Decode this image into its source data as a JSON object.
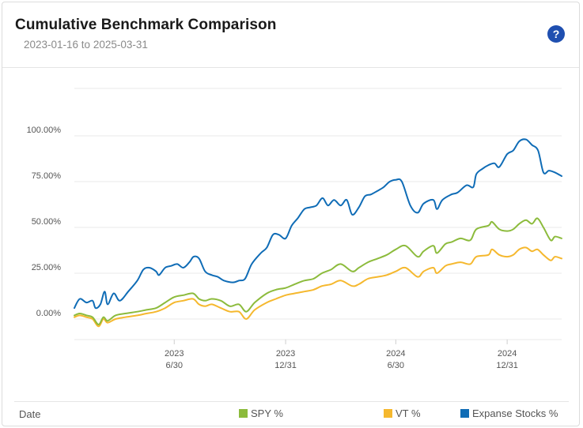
{
  "header": {
    "title": "Cumulative Benchmark Comparison",
    "date_range": "2023-01-16 to 2025-03-31",
    "help_glyph": "?"
  },
  "legend": {
    "x_field_label": "Date",
    "items": [
      {
        "label": "SPY %",
        "color": "#8cbb3c"
      },
      {
        "label": "VT %",
        "color": "#f5b82e"
      },
      {
        "label": "Expanse Stocks %",
        "color": "#0f6cb6"
      }
    ]
  },
  "chart_data": {
    "type": "line",
    "title": "Cumulative Benchmark Comparison",
    "subtitle": "2023-01-16 to 2025-03-31",
    "xlabel": "Date",
    "ylabel": "",
    "x_range": [
      "2023-01-16",
      "2025-03-31"
    ],
    "ylim": [
      -5,
      105
    ],
    "y_ticks": [
      0,
      25,
      50,
      75,
      100
    ],
    "y_tick_labels": [
      "0.00%",
      "25.00%",
      "50.00%",
      "75.00%",
      "100.00%"
    ],
    "x_ticks": [
      {
        "date": "2023-06-30",
        "year": "2023",
        "day": "6/30"
      },
      {
        "date": "2023-12-31",
        "year": "2023",
        "day": "12/31"
      },
      {
        "date": "2024-06-30",
        "year": "2024",
        "day": "6/30"
      },
      {
        "date": "2024-12-31",
        "year": "2024",
        "day": "12/31"
      }
    ],
    "grid": true,
    "legend_position": "bottom",
    "series": [
      {
        "name": "Expanse Stocks %",
        "color": "#0f6cb6",
        "points": [
          [
            "2023-01-16",
            6
          ],
          [
            "2023-01-25",
            11
          ],
          [
            "2023-02-05",
            9
          ],
          [
            "2023-02-15",
            10
          ],
          [
            "2023-02-20",
            6
          ],
          [
            "2023-02-28",
            8
          ],
          [
            "2023-03-07",
            15
          ],
          [
            "2023-03-12",
            8
          ],
          [
            "2023-03-22",
            14
          ],
          [
            "2023-04-01",
            10
          ],
          [
            "2023-04-15",
            15
          ],
          [
            "2023-04-30",
            21
          ],
          [
            "2023-05-10",
            27
          ],
          [
            "2023-05-20",
            28
          ],
          [
            "2023-05-31",
            26
          ],
          [
            "2023-06-05",
            24
          ],
          [
            "2023-06-15",
            28
          ],
          [
            "2023-06-25",
            29
          ],
          [
            "2023-07-05",
            30
          ],
          [
            "2023-07-15",
            28
          ],
          [
            "2023-07-25",
            31
          ],
          [
            "2023-08-01",
            34
          ],
          [
            "2023-08-10",
            33
          ],
          [
            "2023-08-20",
            26
          ],
          [
            "2023-08-31",
            24
          ],
          [
            "2023-09-10",
            23
          ],
          [
            "2023-09-20",
            21
          ],
          [
            "2023-10-05",
            20
          ],
          [
            "2023-10-15",
            21
          ],
          [
            "2023-10-25",
            22
          ],
          [
            "2023-11-05",
            30
          ],
          [
            "2023-11-20",
            36
          ],
          [
            "2023-11-30",
            39
          ],
          [
            "2023-12-10",
            46
          ],
          [
            "2023-12-20",
            46
          ],
          [
            "2023-12-31",
            44
          ],
          [
            "2024-01-10",
            51
          ],
          [
            "2024-01-20",
            55
          ],
          [
            "2024-01-31",
            60
          ],
          [
            "2024-02-10",
            61
          ],
          [
            "2024-02-20",
            62
          ],
          [
            "2024-03-01",
            66
          ],
          [
            "2024-03-10",
            62
          ],
          [
            "2024-03-20",
            65
          ],
          [
            "2024-03-31",
            62
          ],
          [
            "2024-04-10",
            65
          ],
          [
            "2024-04-19",
            57
          ],
          [
            "2024-04-30",
            61
          ],
          [
            "2024-05-10",
            67
          ],
          [
            "2024-05-20",
            68
          ],
          [
            "2024-05-31",
            70
          ],
          [
            "2024-06-10",
            72
          ],
          [
            "2024-06-20",
            75
          ],
          [
            "2024-06-30",
            76
          ],
          [
            "2024-07-10",
            75
          ],
          [
            "2024-07-24",
            62
          ],
          [
            "2024-08-05",
            58
          ],
          [
            "2024-08-15",
            63
          ],
          [
            "2024-08-31",
            65
          ],
          [
            "2024-09-06",
            60
          ],
          [
            "2024-09-15",
            65
          ],
          [
            "2024-09-30",
            68
          ],
          [
            "2024-10-10",
            69
          ],
          [
            "2024-10-25",
            73
          ],
          [
            "2024-11-05",
            72
          ],
          [
            "2024-11-10",
            79
          ],
          [
            "2024-11-20",
            82
          ],
          [
            "2024-11-30",
            84
          ],
          [
            "2024-12-10",
            85
          ],
          [
            "2024-12-18",
            83
          ],
          [
            "2024-12-31",
            90
          ],
          [
            "2025-01-10",
            92
          ],
          [
            "2025-01-20",
            97
          ],
          [
            "2025-01-31",
            98
          ],
          [
            "2025-02-10",
            95
          ],
          [
            "2025-02-20",
            92
          ],
          [
            "2025-03-01",
            80
          ],
          [
            "2025-03-10",
            81
          ],
          [
            "2025-03-20",
            80
          ],
          [
            "2025-03-31",
            78
          ]
        ]
      },
      {
        "name": "SPY %",
        "color": "#8cbb3c",
        "points": [
          [
            "2023-01-16",
            2
          ],
          [
            "2023-01-25",
            3
          ],
          [
            "2023-02-05",
            2
          ],
          [
            "2023-02-15",
            1
          ],
          [
            "2023-02-25",
            -3
          ],
          [
            "2023-03-05",
            1
          ],
          [
            "2023-03-12",
            -1
          ],
          [
            "2023-03-25",
            2
          ],
          [
            "2023-04-10",
            3
          ],
          [
            "2023-04-30",
            4
          ],
          [
            "2023-05-15",
            5
          ],
          [
            "2023-05-31",
            6
          ],
          [
            "2023-06-15",
            9
          ],
          [
            "2023-06-30",
            12
          ],
          [
            "2023-07-15",
            13
          ],
          [
            "2023-07-31",
            14
          ],
          [
            "2023-08-10",
            11
          ],
          [
            "2023-08-20",
            10
          ],
          [
            "2023-08-31",
            11
          ],
          [
            "2023-09-15",
            10
          ],
          [
            "2023-09-30",
            7
          ],
          [
            "2023-10-15",
            8
          ],
          [
            "2023-10-27",
            4
          ],
          [
            "2023-11-10",
            9
          ],
          [
            "2023-11-30",
            14
          ],
          [
            "2023-12-15",
            16
          ],
          [
            "2023-12-31",
            17
          ],
          [
            "2024-01-15",
            19
          ],
          [
            "2024-01-31",
            21
          ],
          [
            "2024-02-15",
            22
          ],
          [
            "2024-02-29",
            25
          ],
          [
            "2024-03-15",
            27
          ],
          [
            "2024-03-31",
            30
          ],
          [
            "2024-04-19",
            26
          ],
          [
            "2024-04-30",
            28
          ],
          [
            "2024-05-15",
            31
          ],
          [
            "2024-05-31",
            33
          ],
          [
            "2024-06-15",
            35
          ],
          [
            "2024-06-30",
            38
          ],
          [
            "2024-07-16",
            40
          ],
          [
            "2024-08-05",
            34
          ],
          [
            "2024-08-15",
            37
          ],
          [
            "2024-08-31",
            40
          ],
          [
            "2024-09-06",
            36
          ],
          [
            "2024-09-20",
            41
          ],
          [
            "2024-09-30",
            42
          ],
          [
            "2024-10-15",
            44
          ],
          [
            "2024-10-31",
            43
          ],
          [
            "2024-11-10",
            49
          ],
          [
            "2024-11-30",
            51
          ],
          [
            "2024-12-06",
            53
          ],
          [
            "2024-12-18",
            49
          ],
          [
            "2024-12-31",
            48
          ],
          [
            "2025-01-10",
            49
          ],
          [
            "2025-01-20",
            52
          ],
          [
            "2025-01-31",
            54
          ],
          [
            "2025-02-10",
            52
          ],
          [
            "2025-02-19",
            55
          ],
          [
            "2025-03-01",
            50
          ],
          [
            "2025-03-13",
            43
          ],
          [
            "2025-03-20",
            45
          ],
          [
            "2025-03-31",
            44
          ]
        ]
      },
      {
        "name": "VT %",
        "color": "#f5b82e",
        "points": [
          [
            "2023-01-16",
            1
          ],
          [
            "2023-01-25",
            2
          ],
          [
            "2023-02-05",
            1
          ],
          [
            "2023-02-15",
            0
          ],
          [
            "2023-02-25",
            -4
          ],
          [
            "2023-03-05",
            0
          ],
          [
            "2023-03-12",
            -2
          ],
          [
            "2023-03-25",
            0
          ],
          [
            "2023-04-10",
            1
          ],
          [
            "2023-04-30",
            2
          ],
          [
            "2023-05-15",
            3
          ],
          [
            "2023-05-31",
            4
          ],
          [
            "2023-06-15",
            6
          ],
          [
            "2023-06-30",
            9
          ],
          [
            "2023-07-15",
            10
          ],
          [
            "2023-07-31",
            11
          ],
          [
            "2023-08-10",
            8
          ],
          [
            "2023-08-20",
            7
          ],
          [
            "2023-08-31",
            8
          ],
          [
            "2023-09-15",
            6
          ],
          [
            "2023-09-30",
            4
          ],
          [
            "2023-10-15",
            4
          ],
          [
            "2023-10-27",
            0
          ],
          [
            "2023-11-10",
            5
          ],
          [
            "2023-11-30",
            9
          ],
          [
            "2023-12-15",
            11
          ],
          [
            "2023-12-31",
            13
          ],
          [
            "2024-01-15",
            14
          ],
          [
            "2024-01-31",
            15
          ],
          [
            "2024-02-15",
            16
          ],
          [
            "2024-02-29",
            18
          ],
          [
            "2024-03-15",
            19
          ],
          [
            "2024-03-31",
            21
          ],
          [
            "2024-04-19",
            18
          ],
          [
            "2024-04-30",
            19
          ],
          [
            "2024-05-15",
            22
          ],
          [
            "2024-05-31",
            23
          ],
          [
            "2024-06-15",
            24
          ],
          [
            "2024-06-30",
            26
          ],
          [
            "2024-07-16",
            28
          ],
          [
            "2024-08-05",
            23
          ],
          [
            "2024-08-15",
            26
          ],
          [
            "2024-08-31",
            28
          ],
          [
            "2024-09-06",
            25
          ],
          [
            "2024-09-20",
            29
          ],
          [
            "2024-09-30",
            30
          ],
          [
            "2024-10-15",
            31
          ],
          [
            "2024-10-31",
            30
          ],
          [
            "2024-11-10",
            34
          ],
          [
            "2024-11-30",
            35
          ],
          [
            "2024-12-06",
            38
          ],
          [
            "2024-12-18",
            35
          ],
          [
            "2024-12-31",
            34
          ],
          [
            "2025-01-10",
            35
          ],
          [
            "2025-01-20",
            38
          ],
          [
            "2025-01-31",
            39
          ],
          [
            "2025-02-10",
            37
          ],
          [
            "2025-02-19",
            38
          ],
          [
            "2025-03-01",
            35
          ],
          [
            "2025-03-13",
            32
          ],
          [
            "2025-03-20",
            34
          ],
          [
            "2025-03-31",
            33
          ]
        ]
      }
    ]
  }
}
